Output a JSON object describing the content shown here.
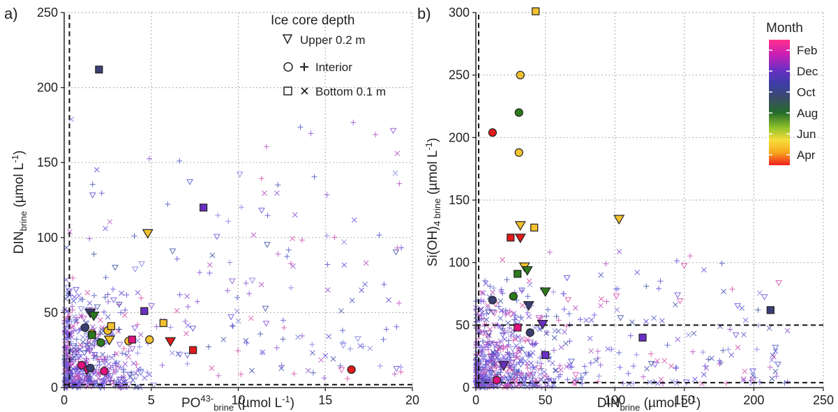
{
  "panels": {
    "a": {
      "label": "a)"
    },
    "b": {
      "label": "b)"
    }
  },
  "legend": {
    "depth_title": "Ice core depth",
    "upper_label": "Upper 0.2 m",
    "interior_label": "Interior",
    "bottom_label": "Bottom 0.1 m",
    "month_title": "Month",
    "month_ticks": [
      "Feb",
      "Dec",
      "Oct",
      "Aug",
      "Jun",
      "Apr"
    ]
  },
  "colors": {
    "Feb": "#e0137f",
    "Dec": "#6a2fc4",
    "Oct": "#3c3f73",
    "Aug": "#2c7a1c",
    "Jun": "#f2c12e",
    "Apr": "#e01c1c"
  },
  "chart_data": [
    {
      "type": "scatter",
      "panel": "a",
      "xlabel": "PO43-brine (µmol L-1)",
      "ylabel": "DINbrine (µmol L-1)",
      "xlim": [
        0,
        20
      ],
      "ylim": [
        0,
        250
      ],
      "xticks": [
        0,
        5,
        10,
        15,
        20
      ],
      "yticks": [
        0,
        50,
        100,
        150,
        200,
        250
      ],
      "grid": true,
      "reference_lines": {
        "vertical_x": 0.3,
        "horizontal_y": 2
      },
      "series": [
        {
          "name": "Upper 0.2 m",
          "points": [
            {
              "x": 1.5,
              "y": 50,
              "month": "Oct"
            },
            {
              "x": 1.7,
              "y": 48,
              "month": "Aug"
            },
            {
              "x": 4.8,
              "y": 103,
              "month": "Jun"
            },
            {
              "x": 2.6,
              "y": 32,
              "month": "Jun"
            },
            {
              "x": 6.1,
              "y": 31,
              "month": "Apr"
            },
            {
              "x": 1.3,
              "y": 12,
              "month": "Feb"
            }
          ]
        },
        {
          "name": "Interior",
          "points": [
            {
              "x": 1.2,
              "y": 40,
              "month": "Oct"
            },
            {
              "x": 1.6,
              "y": 36,
              "month": "Jun"
            },
            {
              "x": 2.1,
              "y": 30,
              "month": "Aug"
            },
            {
              "x": 2.5,
              "y": 38,
              "month": "Jun"
            },
            {
              "x": 3.7,
              "y": 31,
              "month": "Jun"
            },
            {
              "x": 4.9,
              "y": 32,
              "month": "Jun"
            },
            {
              "x": 2.3,
              "y": 11,
              "month": "Feb"
            },
            {
              "x": 16.5,
              "y": 12,
              "month": "Apr"
            },
            {
              "x": 1.5,
              "y": 13,
              "month": "Oct"
            },
            {
              "x": 1.0,
              "y": 15,
              "month": "Feb"
            }
          ]
        },
        {
          "name": "Bottom 0.1 m",
          "points": [
            {
              "x": 2.0,
              "y": 212,
              "month": "Oct"
            },
            {
              "x": 8.0,
              "y": 120,
              "month": "Dec"
            },
            {
              "x": 4.6,
              "y": 51,
              "month": "Dec"
            },
            {
              "x": 5.7,
              "y": 43,
              "month": "Jun"
            },
            {
              "x": 2.7,
              "y": 41,
              "month": "Jun"
            },
            {
              "x": 3.9,
              "y": 32,
              "month": "Feb"
            },
            {
              "x": 7.4,
              "y": 25,
              "month": "Apr"
            },
            {
              "x": 1.6,
              "y": 35,
              "month": "Aug"
            }
          ]
        }
      ]
    },
    {
      "type": "scatter",
      "panel": "b",
      "xlabel": "DINbrine (µmol L-1)",
      "ylabel": "Si(OH)4 brine (µmol L-1)",
      "xlim": [
        0,
        250
      ],
      "ylim": [
        0,
        300
      ],
      "xticks": [
        0,
        50,
        100,
        150,
        200,
        250
      ],
      "yticks": [
        0,
        50,
        100,
        150,
        200,
        250,
        300
      ],
      "grid": true,
      "reference_lines": {
        "vertical_x": 2,
        "horizontal_y": [
          50,
          4
        ]
      },
      "series": [
        {
          "name": "Upper 0.2 m",
          "points": [
            {
              "x": 32,
              "y": 130,
              "month": "Jun"
            },
            {
              "x": 103,
              "y": 135,
              "month": "Jun"
            },
            {
              "x": 32,
              "y": 120,
              "month": "Apr"
            },
            {
              "x": 35,
              "y": 97,
              "month": "Jun"
            },
            {
              "x": 37,
              "y": 94,
              "month": "Aug"
            },
            {
              "x": 50,
              "y": 77,
              "month": "Aug"
            },
            {
              "x": 38,
              "y": 66,
              "month": "Oct"
            },
            {
              "x": 48,
              "y": 51,
              "month": "Dec"
            },
            {
              "x": 20,
              "y": 18,
              "month": "Dec"
            }
          ]
        },
        {
          "name": "Interior",
          "points": [
            {
              "x": 32,
              "y": 250,
              "month": "Jun"
            },
            {
              "x": 31,
              "y": 220,
              "month": "Aug"
            },
            {
              "x": 31,
              "y": 188,
              "month": "Jun"
            },
            {
              "x": 12,
              "y": 204,
              "month": "Apr"
            },
            {
              "x": 12,
              "y": 70,
              "month": "Oct"
            },
            {
              "x": 27,
              "y": 73,
              "month": "Aug"
            },
            {
              "x": 39,
              "y": 44,
              "month": "Oct"
            },
            {
              "x": 15,
              "y": 6,
              "month": "Feb"
            }
          ]
        },
        {
          "name": "Bottom 0.1 m",
          "points": [
            {
              "x": 43,
              "y": 301,
              "month": "Jun"
            },
            {
              "x": 42,
              "y": 128,
              "month": "Jun"
            },
            {
              "x": 25,
              "y": 120,
              "month": "Apr"
            },
            {
              "x": 30,
              "y": 91,
              "month": "Aug"
            },
            {
              "x": 30,
              "y": 48,
              "month": "Feb"
            },
            {
              "x": 50,
              "y": 26,
              "month": "Dec"
            },
            {
              "x": 120,
              "y": 40,
              "month": "Dec"
            },
            {
              "x": 212,
              "y": 62,
              "month": "Oct"
            }
          ]
        }
      ]
    }
  ]
}
